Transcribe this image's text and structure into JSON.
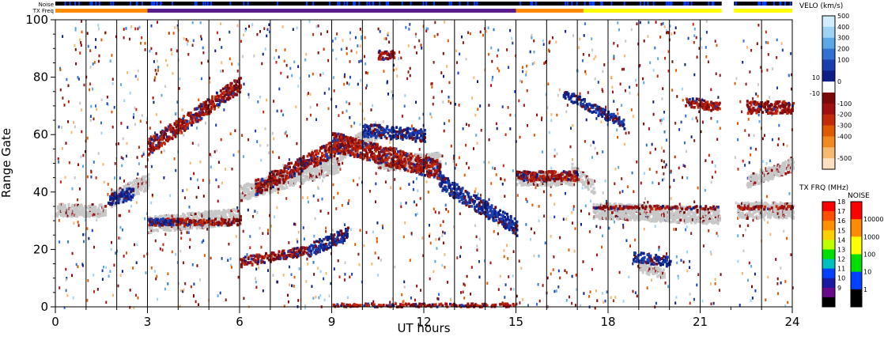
{
  "chart_data": {
    "type": "heatmap",
    "xlabel": "UT hours",
    "ylabel": "Range Gate",
    "xlim": [
      0,
      24
    ],
    "ylim": [
      0,
      100
    ],
    "x_ticks": [
      0,
      3,
      6,
      9,
      12,
      15,
      18,
      21,
      24
    ],
    "y_ticks": [
      0,
      20,
      40,
      60,
      80,
      100
    ],
    "hour_lines": [
      1,
      2,
      3,
      4,
      5,
      6,
      7,
      8,
      9,
      10,
      11,
      12,
      13,
      14,
      15,
      16,
      17,
      18,
      19,
      20,
      21,
      22,
      23
    ],
    "noise_bar": {
      "label": "Noise",
      "data_gap_hours": [
        21.7,
        22.1
      ]
    },
    "txfreq_bar": {
      "label": "TX Freq",
      "segments": [
        {
          "start": 0,
          "end": 3,
          "color": "#ff8c00"
        },
        {
          "start": 3,
          "end": 15,
          "color": "#5a1e8c"
        },
        {
          "start": 15,
          "end": 17.2,
          "color": "#ff8c00"
        },
        {
          "start": 17.2,
          "end": 21.7,
          "color": "#ffff00"
        },
        {
          "start": 22.1,
          "end": 24,
          "color": "#ffff00"
        }
      ]
    },
    "ground_scatter_color": "#c8c8c8",
    "features": [
      {
        "kind": "ground",
        "t0": 0,
        "t1": 1.6,
        "g0": 34,
        "g1": 34,
        "w": 4
      },
      {
        "kind": "ground",
        "t0": 1.8,
        "t1": 3.0,
        "g0": 38,
        "g1": 44,
        "w": 5
      },
      {
        "kind": "ground",
        "t0": 3.0,
        "t1": 6.0,
        "g0": 29,
        "g1": 32,
        "w": 5
      },
      {
        "kind": "ground",
        "t0": 6.0,
        "t1": 9.2,
        "g0": 40,
        "g1": 50,
        "w": 5
      },
      {
        "kind": "ground",
        "t0": 9.2,
        "t1": 10.5,
        "g0": 54,
        "g1": 62,
        "w": 5
      },
      {
        "kind": "ground",
        "t0": 10.5,
        "t1": 12.5,
        "g0": 50,
        "g1": 52,
        "w": 4
      },
      {
        "kind": "ground",
        "t0": 15.0,
        "t1": 16.8,
        "g0": 45,
        "g1": 45,
        "w": 4
      },
      {
        "kind": "ground",
        "t0": 16.8,
        "t1": 17.5,
        "g0": 48,
        "g1": 42,
        "w": 4
      },
      {
        "kind": "ground",
        "t0": 17.5,
        "t1": 21.6,
        "g0": 34,
        "g1": 32,
        "w": 5
      },
      {
        "kind": "ground",
        "t0": 22.2,
        "t1": 24.0,
        "g0": 34,
        "g1": 34,
        "w": 5
      },
      {
        "kind": "ground",
        "t0": 22.5,
        "t1": 24.0,
        "g0": 44,
        "g1": 50,
        "w": 4
      },
      {
        "kind": "ground",
        "t0": 19.0,
        "t1": 19.8,
        "g0": 14,
        "g1": 12,
        "w": 3
      },
      {
        "kind": "red",
        "t0": 3.0,
        "t1": 6.0,
        "g0": 30,
        "g1": 30,
        "w": 2
      },
      {
        "kind": "red",
        "t0": 3.0,
        "t1": 6.0,
        "g0": 56,
        "g1": 78,
        "w": 5
      },
      {
        "kind": "red",
        "t0": 6.0,
        "t1": 8.2,
        "g0": 16,
        "g1": 20,
        "w": 3
      },
      {
        "kind": "red",
        "t0": 6.5,
        "t1": 9.5,
        "g0": 42,
        "g1": 58,
        "w": 5
      },
      {
        "kind": "red",
        "t0": 9.0,
        "t1": 12.5,
        "g0": 58,
        "g1": 48,
        "w": 6
      },
      {
        "kind": "red",
        "t0": 10.5,
        "t1": 11.0,
        "g0": 88,
        "g1": 88,
        "w": 3
      },
      {
        "kind": "red",
        "t0": 15.0,
        "t1": 17.0,
        "g0": 46,
        "g1": 46,
        "w": 3
      },
      {
        "kind": "red",
        "t0": 17.5,
        "t1": 21.6,
        "g0": 35,
        "g1": 35,
        "w": 1
      },
      {
        "kind": "red",
        "t0": 22.2,
        "t1": 24.0,
        "g0": 35,
        "g1": 35,
        "w": 1
      },
      {
        "kind": "red",
        "t0": 22.5,
        "t1": 24.0,
        "g0": 70,
        "g1": 70,
        "w": 4
      },
      {
        "kind": "red",
        "t0": 20.5,
        "t1": 21.6,
        "g0": 72,
        "g1": 70,
        "w": 3
      },
      {
        "kind": "red",
        "t0": 9.0,
        "t1": 15.0,
        "g0": 1,
        "g1": 1,
        "w": 1
      },
      {
        "kind": "blue",
        "t0": 3.0,
        "t1": 3.8,
        "g0": 30,
        "g1": 30,
        "w": 2
      },
      {
        "kind": "blue",
        "t0": 8.2,
        "t1": 9.5,
        "g0": 20,
        "g1": 26,
        "w": 4
      },
      {
        "kind": "blue",
        "t0": 12.5,
        "t1": 15.0,
        "g0": 44,
        "g1": 28,
        "w": 5
      },
      {
        "kind": "blue",
        "t0": 10.0,
        "t1": 12.0,
        "g0": 62,
        "g1": 60,
        "w": 4
      },
      {
        "kind": "blue",
        "t0": 1.7,
        "t1": 2.5,
        "g0": 38,
        "g1": 40,
        "w": 4
      },
      {
        "kind": "blue",
        "t0": 16.5,
        "t1": 18.5,
        "g0": 75,
        "g1": 64,
        "w": 3
      },
      {
        "kind": "blue",
        "t0": 18.8,
        "t1": 20.0,
        "g0": 18,
        "g1": 16,
        "w": 3
      }
    ],
    "velo_colorbar": {
      "title": "VELO (km/s)",
      "labels": [
        "500",
        "400",
        "300",
        "200",
        "100",
        "10",
        "0",
        "-10",
        "-100",
        "-200",
        "-300",
        "-400",
        "-500"
      ],
      "colors": [
        "#d0ecff",
        "#9dd3f5",
        "#5aa9e6",
        "#2f72d4",
        "#1a3fb0",
        "#0d1f86",
        "#ffffff",
        "#7a0a0a",
        "#a01010",
        "#c22a0a",
        "#e05a00",
        "#f08a20",
        "#f7b870",
        "#fde0c0"
      ]
    },
    "txfreq_colorbar": {
      "title": "TX FRQ (MHz)",
      "labels": [
        "18",
        "17",
        "16",
        "15",
        "14",
        "13",
        "12",
        "11",
        "10",
        "9"
      ],
      "colors": [
        "#ff0000",
        "#ff5000",
        "#ff9000",
        "#ffd000",
        "#c0ff00",
        "#00e000",
        "#00c0c0",
        "#0040ff",
        "#1a1aa0",
        "#6a0a8a",
        "#000000"
      ]
    },
    "noise_colorbar": {
      "title": "NOISE",
      "labels": [
        "10000",
        "1000",
        "100",
        "10",
        "1"
      ],
      "colors": [
        "#ff0000",
        "#ff8c00",
        "#ffff00",
        "#00e000",
        "#0040ff",
        "#000000"
      ]
    }
  }
}
